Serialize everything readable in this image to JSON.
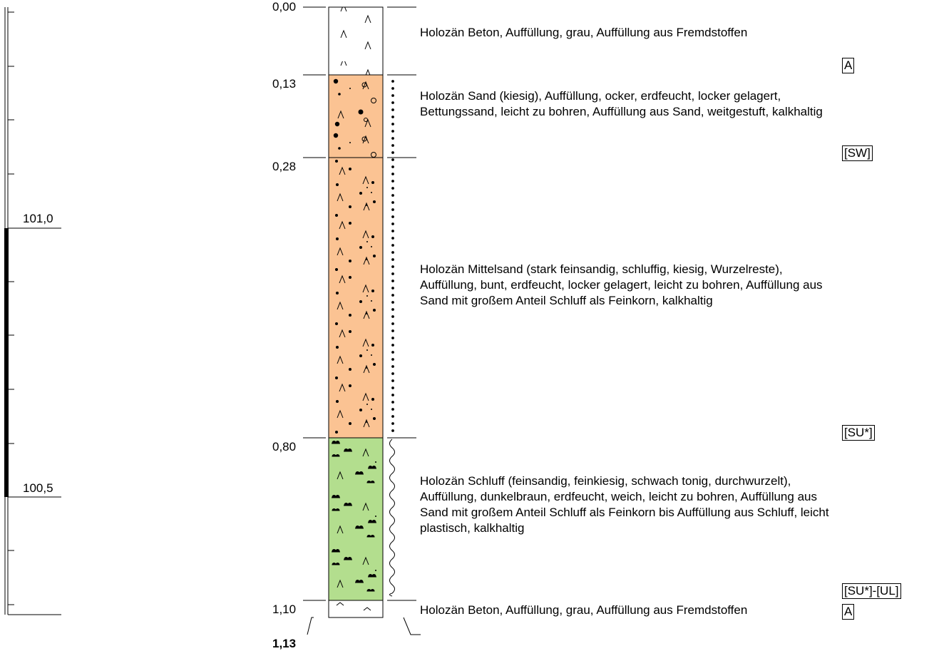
{
  "ruler": {
    "labels": [
      "101,0",
      "100,5"
    ]
  },
  "depths": [
    "0,00",
    "0,13",
    "0,28",
    "0,80",
    "1,10",
    "1,13"
  ],
  "layers": [
    {
      "description": "Holozän Beton, Auffüllung, grau, Auffüllung aus Fremdstoffen",
      "code": "A",
      "color": "#ffffff"
    },
    {
      "description": "Holozän Sand (kiesig), Auffüllung, ocker, erdfeucht, locker gelagert, Bettungssand, leicht zu bohren, Auffüllung aus Sand, weitgestuft, kalkhaltig",
      "code": "[SW]",
      "color": "#fbc393"
    },
    {
      "description": "Holozän Mittelsand (stark feinsandig, schluffig, kiesig, Wurzelreste), Auffüllung, bunt, erdfeucht, locker gelagert, leicht zu bohren, Auffüllung aus Sand mit großem Anteil Schluff als Feinkorn, kalkhaltig",
      "code": "[SU*]",
      "color": "#fbc393"
    },
    {
      "description": "Holozän Schluff (feinsandig, feinkiesig, schwach tonig, durchwurzelt), Auffüllung, dunkelbraun, erdfeucht, weich, leicht zu bohren, Auffüllung aus Sand mit großem Anteil Schluff als Feinkorn bis Auffüllung aus Schluff, leicht plastisch, kalkhaltig",
      "code": "[SU*]-[UL]",
      "color": "#b3de8e"
    },
    {
      "description": "Holozän Beton, Auffüllung, grau, Auffüllung aus Fremdstoffen",
      "code": "A",
      "color": "#ffffff"
    }
  ]
}
